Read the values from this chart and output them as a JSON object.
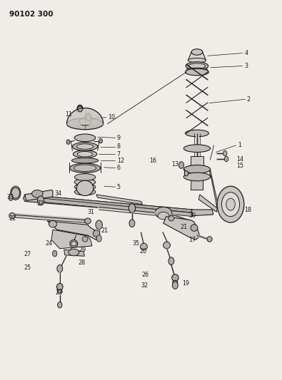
{
  "title": "90102 300",
  "bg_color": "#f0ede8",
  "lc": "#1a1a1a",
  "figsize": [
    3.95,
    5.33
  ],
  "dpi": 100,
  "label_fs": 5.8,
  "labels": {
    "1": [
      0.845,
      0.618,
      "left"
    ],
    "2": [
      0.88,
      0.75,
      "left"
    ],
    "3": [
      0.87,
      0.825,
      "left"
    ],
    "4": [
      0.87,
      0.86,
      "left"
    ],
    "5": [
      0.43,
      0.505,
      "left"
    ],
    "6": [
      0.44,
      0.56,
      "left"
    ],
    "7": [
      0.44,
      0.59,
      "left"
    ],
    "8": [
      0.438,
      0.618,
      "left"
    ],
    "9": [
      0.438,
      0.648,
      "left"
    ],
    "10": [
      0.365,
      0.7,
      "left"
    ],
    "11": [
      0.24,
      0.705,
      "left"
    ],
    "12": [
      0.437,
      0.575,
      "left"
    ],
    "13": [
      0.6,
      0.57,
      "left"
    ],
    "14": [
      0.84,
      0.582,
      "left"
    ],
    "15": [
      0.84,
      0.564,
      "left"
    ],
    "16": [
      0.542,
      0.583,
      "left"
    ],
    "17": [
      0.668,
      0.37,
      "left"
    ],
    "18": [
      0.87,
      0.445,
      "left"
    ],
    "19": [
      0.668,
      0.248,
      "left"
    ],
    "20": [
      0.5,
      0.335,
      "left"
    ],
    "21": [
      0.636,
      0.4,
      "left"
    ],
    "21b": [
      0.352,
      0.392,
      "left"
    ],
    "22": [
      0.095,
      0.415,
      "left"
    ],
    "23": [
      0.188,
      0.228,
      "left"
    ],
    "24": [
      0.178,
      0.362,
      "left"
    ],
    "25": [
      0.09,
      0.3,
      "left"
    ],
    "26": [
      0.505,
      0.282,
      "left"
    ],
    "27": [
      0.088,
      0.338,
      "left"
    ],
    "28": [
      0.278,
      0.31,
      "left"
    ],
    "29": [
      0.278,
      0.345,
      "left"
    ],
    "30": [
      0.668,
      0.432,
      "left"
    ],
    "31": [
      0.305,
      0.445,
      "left"
    ],
    "32a": [
      0.128,
      0.462,
      "left"
    ],
    "32b": [
      0.505,
      0.248,
      "left"
    ],
    "33": [
      0.028,
      0.48,
      "left"
    ],
    "34": [
      0.195,
      0.49,
      "left"
    ],
    "35": [
      0.468,
      0.355,
      "left"
    ]
  }
}
